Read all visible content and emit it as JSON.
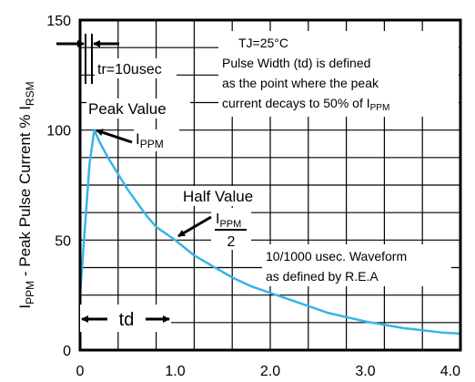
{
  "chart_data": {
    "type": "line",
    "title": "",
    "xlabel": "",
    "ylabel": {
      "main": "I",
      "main_sub": "PPM",
      "text": " - Peak Pulse Current % I",
      "text_sub": "RSM"
    },
    "xlim": [
      0,
      4.0
    ],
    "ylim": [
      0,
      150
    ],
    "grid": true,
    "x_ticks": [
      "0",
      "1.0",
      "2.0",
      "3.0",
      "4.0"
    ],
    "y_ticks": [
      "0",
      "50",
      "100",
      "150"
    ],
    "colors": {
      "curve": "#38b4e8",
      "grid": "#000000",
      "background": "#ffffff"
    },
    "series": [
      {
        "x": [
          0.0,
          0.05,
          0.1,
          0.15,
          0.2,
          0.3,
          0.4,
          0.5,
          0.6,
          0.7,
          0.8,
          0.9,
          1.0,
          1.2,
          1.4,
          1.6,
          1.8,
          2.0,
          2.2,
          2.4,
          2.6,
          2.8,
          3.0,
          3.2,
          3.4,
          3.6,
          3.8,
          4.0
        ],
        "y": [
          25,
          55,
          85,
          100,
          95,
          87,
          80,
          73,
          67,
          61,
          56,
          53,
          50,
          43,
          38,
          33,
          29,
          26,
          23,
          20,
          17,
          15,
          13,
          11.5,
          10,
          9,
          8,
          7.5
        ]
      }
    ],
    "annotations": {
      "tj": "TJ=25°C",
      "pw_line1": "Pulse Width (td) is defined",
      "pw_line2": "as the point where the peak",
      "pw_line3": "current decays to 50% of I",
      "pw_line3_sub": "PPM",
      "tr": "tr=10usec",
      "peak_value": "Peak Value",
      "peak_ippm": "I",
      "peak_ippm_sub": "PPM",
      "half_value": "Half Value",
      "half_num": "I",
      "half_num_sub": "PPM",
      "half_den": "2",
      "waveform_line1": "10/1000 usec. Waveform",
      "waveform_line2": "as defined by R.E.A",
      "td": "td"
    }
  }
}
